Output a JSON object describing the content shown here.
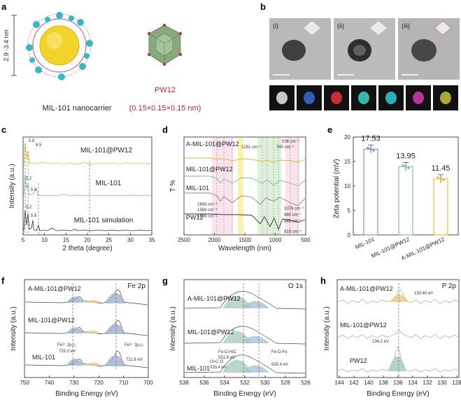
{
  "panels": {
    "a": {
      "letter": "a",
      "size_range": "2.9 -3.4 nm",
      "nanocarrier_label": "MIL-101 nanocarrier",
      "pw12_label": "PW12",
      "pw12_dims": "(0.15×0.15×0.15 nm)",
      "accent_color": "#c0282d"
    },
    "b": {
      "letter": "b",
      "subpanels": [
        "(i)",
        "(ii)",
        "(iii)"
      ],
      "eds_map_colors": [
        "#e8e8e8",
        "#3a6bd6",
        "#e8343b",
        "#3bd6c7",
        "#33c9d6",
        "#d63ab3",
        "#c7c23a"
      ]
    },
    "c": {
      "letter": "c",
      "xlabel": "2 theta (degree)",
      "ylabel": "Intensity (a.u.)",
      "xticks": [
        "5",
        "10",
        "15",
        "20",
        "25",
        "30",
        "35"
      ],
      "traces": [
        {
          "name": "MIL-101@PW12",
          "color": "#e8b52a"
        },
        {
          "name": "MIL-101",
          "color": "#7fb8a4"
        },
        {
          "name": "MIL-101 simulation",
          "color": "#333333"
        }
      ],
      "peak_labels": [
        "5.8",
        "6.5",
        "5.2",
        "5.8",
        "5.2",
        "5.8"
      ]
    },
    "d": {
      "letter": "d",
      "xlabel": "Wavelength (nm)",
      "ylabel": "T %",
      "xticks": [
        "2500",
        "2000",
        "1500",
        "1000",
        "500"
      ],
      "traces": [
        "A-MIL-101@PW12",
        "MIL-101@PW12",
        "MIL-101",
        "PW12"
      ],
      "annotations": [
        "1281 cm⁻¹",
        "745 cm⁻¹",
        "536 cm⁻¹",
        "1693 cm⁻¹",
        "1569 cm⁻¹",
        "1389 cm⁻¹",
        "1076 cm⁻¹",
        "980 cm⁻¹",
        "889 cm⁻¹",
        "819 cm⁻¹"
      ]
    },
    "e": {
      "letter": "e",
      "ylabel": "Zeta potential (mV)",
      "yticks": [
        "0",
        "5",
        "10",
        "15",
        "20"
      ]
    },
    "f": {
      "letter": "f",
      "title": "Fe 2p",
      "xlabel": "Binding Energy (eV)",
      "ylabel": "Intensity (a.u.)",
      "xticks": [
        "750",
        "740",
        "730",
        "720",
        "710",
        "700"
      ],
      "traces": [
        "A-MIL-101@PW12",
        "MIL-101@PW12",
        "MIL-101"
      ],
      "annotations": [
        "Fe³⁺ 2p₁/₂",
        "725.3 eV",
        "Fe³⁺ 2p₃/₂",
        "711.8 eV"
      ]
    },
    "g": {
      "letter": "g",
      "title": "O 1s",
      "xlabel": "Binding Energy (eV)",
      "ylabel": "Intensity (a.u.)",
      "xticks": [
        "538",
        "536",
        "534",
        "532",
        "530",
        "528",
        "526"
      ],
      "traces": [
        "A-MIL-101@PW12",
        "MIL-101@PW12",
        "MIL-101"
      ],
      "annotations": [
        "Fe-O-H/C",
        "531.8 eV",
        "O=C-O",
        "533.4 eV",
        "Fe-O-Fe",
        "530.4 eV"
      ]
    },
    "h": {
      "letter": "h",
      "title": "P 2p",
      "xlabel": "Binding Energy (eV)",
      "ylabel": "Intensity (a.u.)",
      "xticks": [
        "144",
        "142",
        "140",
        "138",
        "136",
        "134",
        "132",
        "130",
        "128"
      ],
      "traces": [
        "A-MIL-101@PW12",
        "MIL-101@PW12",
        "PW12"
      ],
      "annotations": [
        "133.40 eV",
        "134.2 eV"
      ]
    }
  },
  "chart_data": [
    {
      "type": "bar",
      "title": "",
      "categories": [
        "MIL-101",
        "MIL-101@PW12",
        "A-MIL-101@PW12"
      ],
      "values": [
        17.53,
        13.95,
        11.45
      ],
      "value_labels": [
        "17.53",
        "13.95",
        "11.45"
      ],
      "colors": [
        "#6f8fd8",
        "#7fb8a4",
        "#e8b52a"
      ],
      "ylabel": "Zeta potential (mV)",
      "ylim": [
        0,
        20
      ]
    }
  ]
}
